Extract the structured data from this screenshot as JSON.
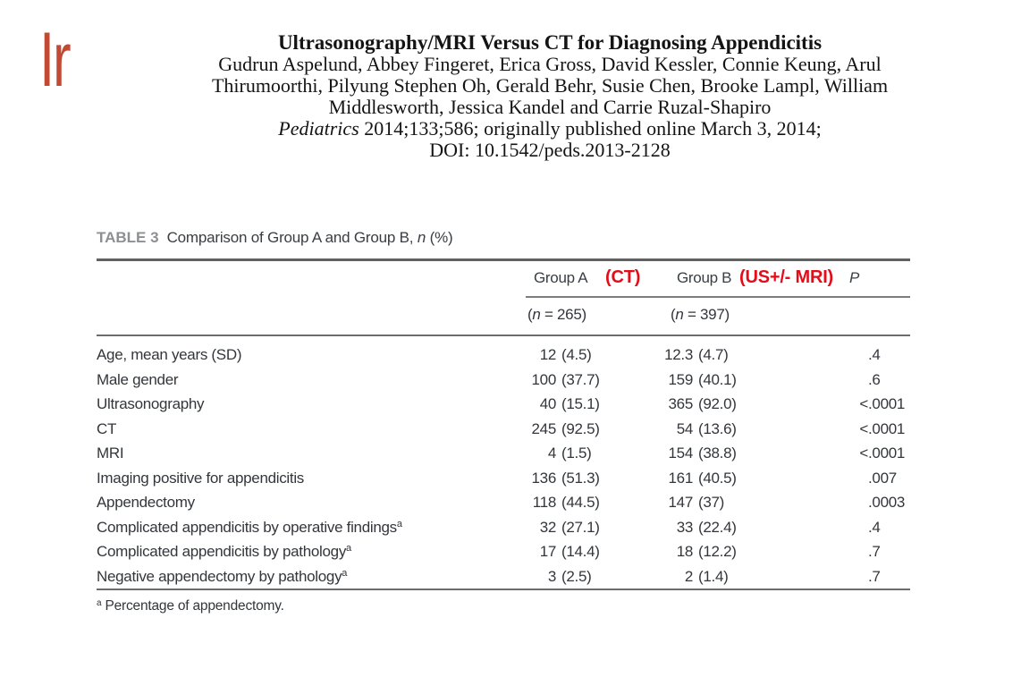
{
  "page": {
    "logo_fragment": "Ir"
  },
  "article": {
    "title": "Ultrasonography/MRI Versus CT for Diagnosing Appendicitis",
    "authors_line1": "Gudrun Aspelund, Abbey Fingeret, Erica Gross, David Kessler, Connie Keung, Arul",
    "authors_line2": "Thirumoorthi, Pilyung Stephen Oh, Gerald Behr, Susie Chen, Brooke Lampl, William",
    "authors_line3": "Middlesworth, Jessica Kandel and Carrie Ruzal-Shapiro",
    "citation_journal": "Pediatrics",
    "citation_rest": " 2014;133;586; originally published online March 3, 2014;",
    "doi_line": "DOI: 10.1542/peds.2013-2128"
  },
  "table": {
    "label": "TABLE 3",
    "caption_pre": "Comparison of Group A and Group B, ",
    "caption_italic": "n",
    "caption_post": " (%)",
    "header": {
      "groupA": "Group A",
      "groupA_annotation": "(CT)",
      "groupB": "Group B",
      "groupB_annotation": "(US+/- MRI)",
      "p": "P",
      "groupA_n_open": "(",
      "groupA_n_it": "n",
      "groupA_n_rest": " = 265)",
      "groupB_n_open": "(",
      "groupB_n_it": "n",
      "groupB_n_rest": " = 397)"
    },
    "rows": [
      {
        "label": "Age, mean years (SD)",
        "sup": "",
        "a_n": "12",
        "a_pct": "(4.5)",
        "b_n": "12.3",
        "b_pct": "(4.7)",
        "p_pre": "",
        "p_val": ".4"
      },
      {
        "label": "Male gender",
        "sup": "",
        "a_n": "100",
        "a_pct": "(37.7)",
        "b_n": "159",
        "b_pct": "(40.1)",
        "p_pre": "",
        "p_val": ".6"
      },
      {
        "label": "Ultrasonography",
        "sup": "",
        "a_n": "40",
        "a_pct": "(15.1)",
        "b_n": "365",
        "b_pct": "(92.0)",
        "p_pre": "<",
        "p_val": ".0001"
      },
      {
        "label": "CT",
        "sup": "",
        "a_n": "245",
        "a_pct": "(92.5)",
        "b_n": "54",
        "b_pct": "(13.6)",
        "p_pre": "<",
        "p_val": ".0001"
      },
      {
        "label": "MRI",
        "sup": "",
        "a_n": "4",
        "a_pct": "(1.5)",
        "b_n": "154",
        "b_pct": "(38.8)",
        "p_pre": "<",
        "p_val": ".0001"
      },
      {
        "label": "Imaging positive for appendicitis",
        "sup": "",
        "a_n": "136",
        "a_pct": "(51.3)",
        "b_n": "161",
        "b_pct": "(40.5)",
        "p_pre": "",
        "p_val": ".007"
      },
      {
        "label": "Appendectomy",
        "sup": "",
        "a_n": "118",
        "a_pct": "(44.5)",
        "b_n": "147",
        "b_pct": "(37)",
        "p_pre": "",
        "p_val": ".0003"
      },
      {
        "label": "Complicated appendicitis by operative findings",
        "sup": "a",
        "a_n": "32",
        "a_pct": "(27.1)",
        "b_n": "33",
        "b_pct": "(22.4)",
        "p_pre": "",
        "p_val": ".4"
      },
      {
        "label": "Complicated appendicitis by pathology",
        "sup": "a",
        "a_n": "17",
        "a_pct": "(14.4)",
        "b_n": "18",
        "b_pct": "(12.2)",
        "p_pre": "",
        "p_val": ".7"
      },
      {
        "label": "Negative appendectomy by pathology",
        "sup": "a",
        "a_n": "3",
        "a_pct": "(2.5)",
        "b_n": "2",
        "b_pct": "(1.4)",
        "p_pre": "",
        "p_val": ".7"
      }
    ],
    "footnote_sup": "a",
    "footnote_text": " Percentage of appendectomy."
  },
  "colors": {
    "annotation_red": "#e40c18",
    "logo_red": "#c04a33",
    "rule_gray": "#6a6c6e",
    "table_label_gray": "#8d8f92",
    "table_text": "#33363b"
  }
}
